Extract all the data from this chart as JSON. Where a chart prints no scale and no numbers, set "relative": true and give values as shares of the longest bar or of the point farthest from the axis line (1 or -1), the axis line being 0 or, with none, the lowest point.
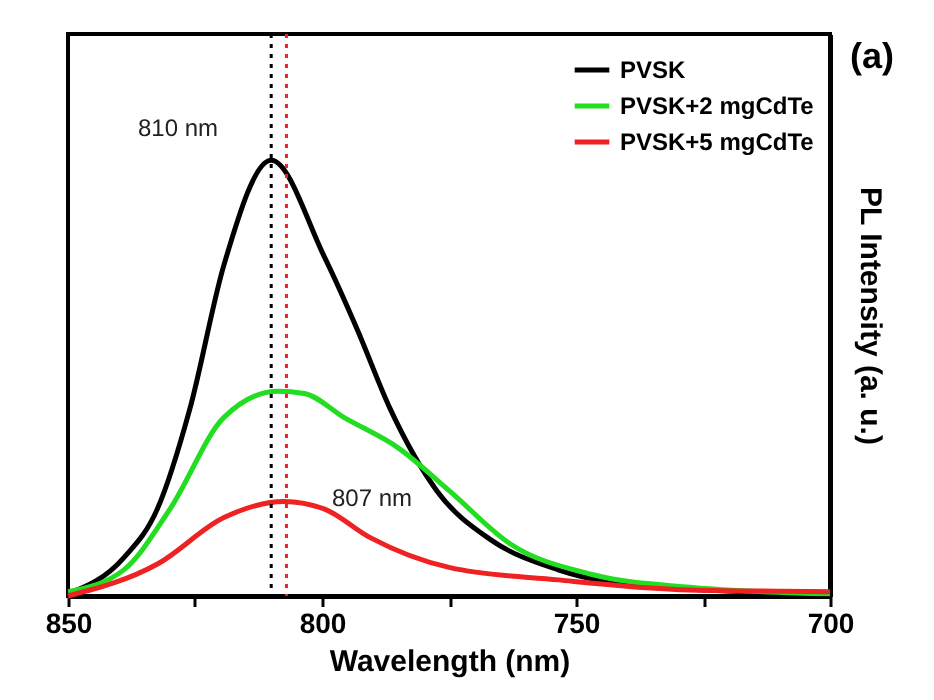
{
  "chart_data": {
    "type": "line",
    "xlabel": "Wavelength (nm)",
    "ylabel": "PL Intensity (a. u.)",
    "relative": true,
    "xlim": [
      850,
      700
    ],
    "xticks": [
      850,
      {
        "value": 825,
        "label": null
      },
      800,
      {
        "value": 775,
        "label": null
      },
      750,
      {
        "value": 725,
        "label": null
      },
      700
    ],
    "tick_labels": "x",
    "legend": "top right",
    "grid": false,
    "marker": "none",
    "line_style": "solid",
    "series": [
      {
        "name": "PVSK",
        "color": "#000000",
        "x": [
          850,
          839,
          832.4,
          826,
          819.3,
          810,
          799.6,
          793,
          786.6,
          777.3,
          766.9,
          753.5,
          733.9,
          700
        ],
        "values": [
          0.005,
          0.088,
          0.2,
          0.43,
          0.76,
          1,
          0.78,
          0.61,
          0.43,
          0.24,
          0.13,
          0.06,
          0.02,
          0.005
        ]
      },
      {
        "name": "PVSK+2 mgCdTe",
        "color": "#22dd22",
        "x": [
          850,
          839,
          829.9,
          819.3,
          808.7,
          803.5,
          795.7,
          785,
          774.8,
          763,
          747,
          727.6,
          700
        ],
        "values": [
          0.01,
          0.06,
          0.2,
          0.41,
          0.47,
          0.465,
          0.41,
          0.34,
          0.24,
          0.12,
          0.05,
          0.02,
          0.005
        ]
      },
      {
        "name": "PVSK+5 mgCdTe",
        "color": "#ee2222",
        "x": [
          850,
          832.3,
          819.3,
          807.5,
          799.6,
          790.5,
          774.8,
          753.5,
          727.6,
          700
        ],
        "values": [
          0.0,
          0.074,
          0.18,
          0.217,
          0.2,
          0.134,
          0.065,
          0.037,
          0.014,
          0.01
        ]
      }
    ],
    "ref_lines": [
      {
        "axis": "x",
        "value": 810,
        "color": "#000000",
        "line_style": "dotted"
      },
      {
        "axis": "x",
        "value": 807,
        "color": "#ee2222",
        "line_style": "dotted"
      }
    ],
    "annotations": [
      "810 nm",
      "807 nm",
      "(a)"
    ]
  }
}
